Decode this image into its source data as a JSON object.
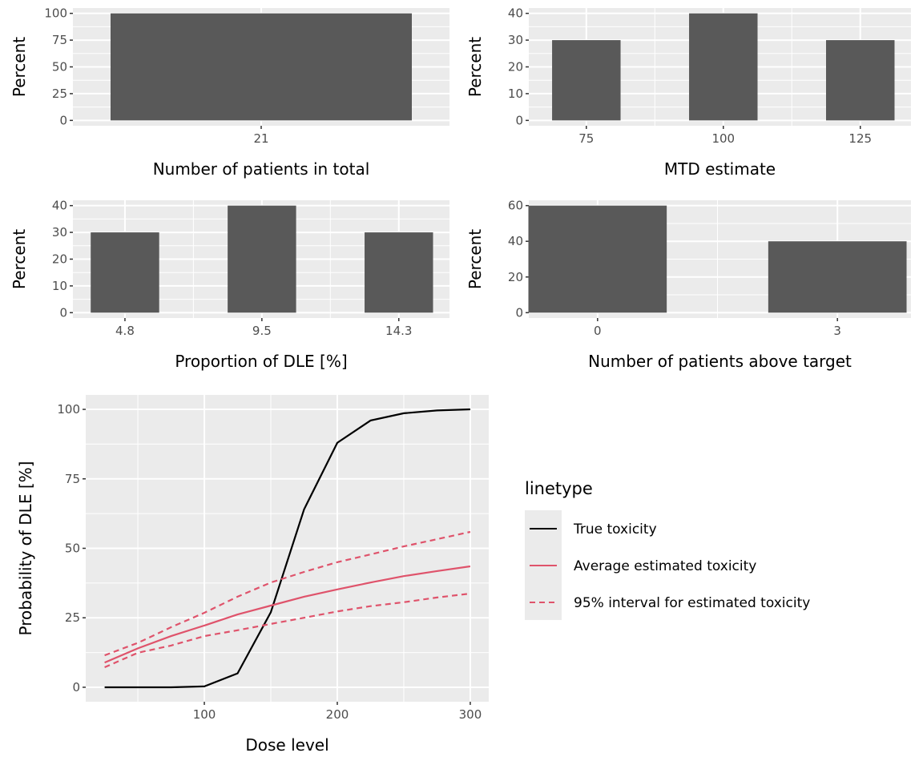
{
  "colors": {
    "panel_bg": "#ebebeb",
    "grid": "#ffffff",
    "bar": "#595959",
    "true_line": "#000000",
    "estimate_line": "#df536b"
  },
  "chart_data": [
    {
      "type": "bar",
      "xlabel": "Number of patients in total",
      "ylabel": "Percent",
      "categories": [
        "21"
      ],
      "values": [
        100
      ],
      "ylim": [
        0,
        100
      ],
      "yticks": [
        0,
        25,
        50,
        75,
        100
      ],
      "grid": true
    },
    {
      "type": "bar",
      "xlabel": "MTD estimate",
      "ylabel": "Percent",
      "categories": [
        "75",
        "100",
        "125"
      ],
      "values": [
        30,
        40,
        30
      ],
      "ylim": [
        0,
        40
      ],
      "yticks": [
        0,
        10,
        20,
        30,
        40
      ],
      "grid": true
    },
    {
      "type": "bar",
      "xlabel": "Proportion of DLE [%]",
      "ylabel": "Percent",
      "categories": [
        "4.8",
        "9.5",
        "14.3"
      ],
      "values": [
        30,
        40,
        30
      ],
      "ylim": [
        0,
        40
      ],
      "yticks": [
        0,
        10,
        20,
        30,
        40
      ],
      "grid": true
    },
    {
      "type": "bar",
      "xlabel": "Number of patients above target",
      "ylabel": "Percent",
      "categories": [
        "0",
        "3"
      ],
      "x": [
        0,
        3
      ],
      "values": [
        60,
        40
      ],
      "ylim": [
        0,
        60
      ],
      "yticks": [
        0,
        20,
        40,
        60
      ],
      "grid": true
    },
    {
      "type": "line",
      "xlabel": "Dose level",
      "ylabel": "Probability of DLE [%]",
      "xticks": [
        100,
        200,
        300
      ],
      "yticks": [
        0,
        25,
        50,
        75,
        100
      ],
      "xlim": [
        25,
        300
      ],
      "ylim": [
        0,
        100
      ],
      "grid": true,
      "legend_title": "linetype",
      "legend_position": "right",
      "x": [
        25,
        50,
        75,
        100,
        125,
        150,
        175,
        200,
        225,
        250,
        275,
        300
      ],
      "series": [
        {
          "name": "True toxicity",
          "linetype": "solid",
          "color": "#000000",
          "values": [
            0,
            0,
            0,
            0.3,
            5,
            27,
            64,
            88,
            96,
            98.6,
            99.6,
            100
          ]
        },
        {
          "name": "Average estimated toxicity",
          "linetype": "solid",
          "color": "#df536b",
          "values": [
            8.9,
            14,
            18.4,
            22.2,
            26.2,
            29.4,
            32.6,
            35.2,
            37.7,
            40,
            41.8,
            43.5
          ]
        },
        {
          "name": "95% interval for estimated toxicity",
          "linetype": "dashed",
          "color": "#df536b",
          "values": [
            11.5,
            16,
            21.6,
            26.8,
            32.6,
            37.7,
            41.5,
            45,
            47.8,
            50.7,
            53.3,
            55.9
          ]
        },
        {
          "name": "95% interval for estimated toxicity",
          "linetype": "dashed",
          "color": "#df536b",
          "values": [
            7.2,
            12.4,
            15,
            18.4,
            20.5,
            22.8,
            25,
            27.3,
            29.2,
            30.6,
            32.3,
            33.7
          ]
        }
      ],
      "legend": [
        "True toxicity",
        "Average estimated toxicity",
        "95% interval for estimated toxicity"
      ]
    }
  ]
}
